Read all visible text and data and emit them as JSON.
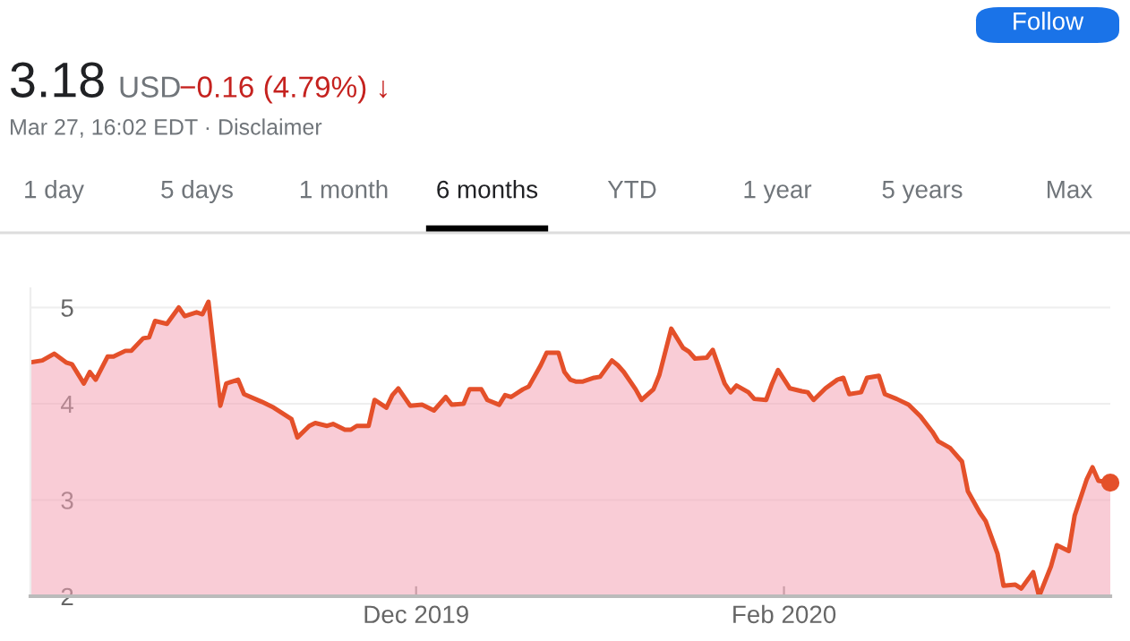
{
  "chart_data": {
    "type": "area",
    "annotations": [
      "3.18",
      "USD",
      "−0.16 (4.79%) ↓",
      "Mar 27, 16:02 EDT · Disclaimer",
      "1 day",
      "5 days",
      "1 month",
      "6 months",
      "YTD",
      "1 year",
      "5 years",
      "Max",
      "Follow"
    ],
    "xlim": [
      "2019-09-27",
      "2020-03-27"
    ],
    "xticks": [
      {
        "value": "2019-12-01",
        "label": "Dec 2019"
      },
      {
        "value": "2020-02-01",
        "label": "Feb 2020"
      }
    ],
    "ylim": [
      2,
      5.2
    ],
    "yticks": [
      2,
      3,
      4,
      5
    ],
    "grid": "y",
    "series": [
      {
        "color": "#e4502a",
        "x": [
          "2019-09-27",
          "2019-09-29",
          "2019-10-01",
          "2019-10-03",
          "2019-10-04",
          "2019-10-06",
          "2019-10-07",
          "2019-10-08",
          "2019-10-10",
          "2019-10-11",
          "2019-10-13",
          "2019-10-14",
          "2019-10-16",
          "2019-10-17",
          "2019-10-18",
          "2019-10-20",
          "2019-10-22",
          "2019-10-23",
          "2019-10-25",
          "2019-10-26",
          "2019-10-27",
          "2019-10-29",
          "2019-10-30",
          "2019-11-01",
          "2019-11-02",
          "2019-11-05",
          "2019-11-07",
          "2019-11-10",
          "2019-11-11",
          "2019-11-13",
          "2019-11-14",
          "2019-11-16",
          "2019-11-17",
          "2019-11-19",
          "2019-11-20",
          "2019-11-21",
          "2019-11-23",
          "2019-11-24",
          "2019-11-26",
          "2019-11-27",
          "2019-11-28",
          "2019-11-30",
          "2019-12-02",
          "2019-12-03",
          "2019-12-04",
          "2019-12-06",
          "2019-12-07",
          "2019-12-09",
          "2019-12-10",
          "2019-12-12",
          "2019-12-13",
          "2019-12-15",
          "2019-12-16",
          "2019-12-17",
          "2019-12-19",
          "2019-12-20",
          "2019-12-22",
          "2019-12-23",
          "2019-12-25",
          "2019-12-26",
          "2019-12-27",
          "2019-12-28",
          "2019-12-29",
          "2019-12-31",
          "2020-01-01",
          "2020-01-03",
          "2020-01-04",
          "2020-01-05",
          "2020-01-07",
          "2020-01-08",
          "2020-01-10",
          "2020-01-11",
          "2020-01-13",
          "2020-01-15",
          "2020-01-16",
          "2020-01-17",
          "2020-01-19",
          "2020-01-20",
          "2020-01-22",
          "2020-01-23",
          "2020-01-24",
          "2020-01-26",
          "2020-01-27",
          "2020-01-29",
          "2020-01-30",
          "2020-01-31",
          "2020-02-02",
          "2020-02-04",
          "2020-02-05",
          "2020-02-06",
          "2020-02-08",
          "2020-02-10",
          "2020-02-11",
          "2020-02-12",
          "2020-02-14",
          "2020-02-15",
          "2020-02-17",
          "2020-02-18",
          "2020-02-20",
          "2020-02-22",
          "2020-02-24",
          "2020-02-26",
          "2020-02-27",
          "2020-02-29",
          "2020-03-02",
          "2020-03-03",
          "2020-03-05",
          "2020-03-06",
          "2020-03-08",
          "2020-03-09",
          "2020-03-11",
          "2020-03-12",
          "2020-03-14",
          "2020-03-15",
          "2020-03-17",
          "2020-03-18",
          "2020-03-20",
          "2020-03-21",
          "2020-03-23",
          "2020-03-24",
          "2020-03-25",
          "2020-03-27"
        ],
        "values": [
          4.43,
          4.45,
          4.52,
          4.43,
          4.41,
          4.21,
          4.33,
          4.25,
          4.49,
          4.49,
          4.55,
          4.55,
          4.68,
          4.69,
          4.86,
          4.83,
          5.0,
          4.91,
          4.95,
          4.93,
          5.06,
          3.98,
          4.21,
          4.25,
          4.1,
          4.02,
          3.96,
          3.84,
          3.65,
          3.77,
          3.8,
          3.77,
          3.79,
          3.73,
          3.73,
          3.77,
          3.77,
          4.04,
          3.96,
          4.09,
          4.16,
          3.98,
          3.99,
          3.96,
          3.93,
          4.07,
          3.99,
          4.0,
          4.15,
          4.15,
          4.04,
          3.99,
          4.09,
          4.07,
          4.15,
          4.18,
          4.4,
          4.53,
          4.53,
          4.33,
          4.25,
          4.23,
          4.23,
          4.27,
          4.28,
          4.45,
          4.4,
          4.33,
          4.15,
          4.04,
          4.15,
          4.3,
          4.78,
          4.58,
          4.54,
          4.47,
          4.48,
          4.56,
          4.21,
          4.12,
          4.19,
          4.12,
          4.05,
          4.04,
          4.21,
          4.35,
          4.16,
          4.13,
          4.12,
          4.04,
          4.16,
          4.25,
          4.27,
          4.1,
          4.12,
          4.27,
          4.29,
          4.1,
          4.05,
          3.99,
          3.87,
          3.71,
          3.61,
          3.54,
          3.4,
          3.09,
          2.87,
          2.78,
          2.44,
          2.11,
          2.12,
          2.08,
          2.25,
          2.0,
          2.31,
          2.53,
          2.47,
          2.84,
          3.21,
          3.34,
          3.2,
          3.18
        ]
      },
      {
        "type": "scatter",
        "color": "#e4502a",
        "x": [
          "2020-03-27"
        ],
        "values": [
          3.18
        ]
      }
    ]
  }
}
